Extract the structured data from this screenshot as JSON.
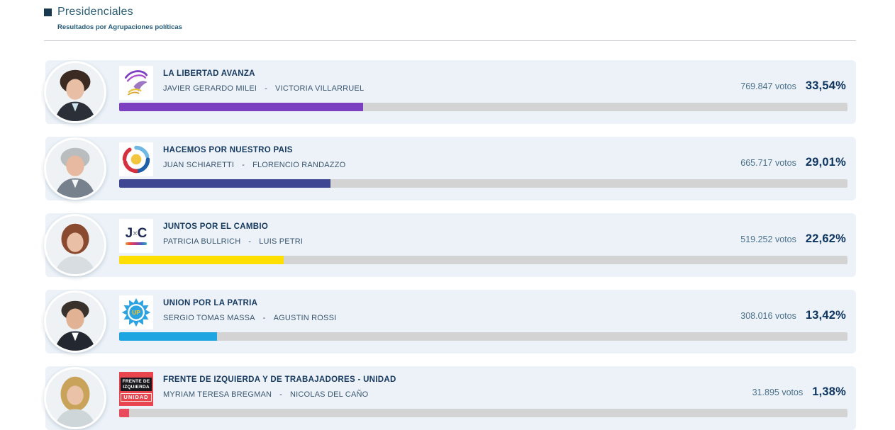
{
  "header": {
    "title": "Presidenciales",
    "subtitle": "Resultados por Agrupaciones políticas"
  },
  "colors": {
    "accent_navy": "#0e3560",
    "card_background": "#ecf2f8",
    "bar_track": "#d3d3d3",
    "header_title": "#2d6077"
  },
  "chart_data": {
    "type": "bar",
    "orientation": "horizontal",
    "title": "Presidenciales",
    "subtitle": "Resultados por Agrupaciones políticas",
    "categories": [
      "LA LIBERTAD AVANZA",
      "HACEMOS POR NUESTRO PAIS",
      "JUNTOS POR EL CAMBIO",
      "UNION POR LA PATRIA",
      "FRENTE DE IZQUIERDA Y DE TRABAJADORES - UNIDAD"
    ],
    "series": [
      {
        "name": "Porcentaje",
        "values": [
          33.54,
          29.01,
          22.62,
          13.42,
          1.38
        ]
      },
      {
        "name": "Votos",
        "values": [
          769847,
          665717,
          519252,
          308016,
          31895
        ]
      }
    ],
    "xlim": [
      0,
      100
    ],
    "bar_colors": [
      "#7b3fc0",
      "#3f4793",
      "#ffdf00",
      "#1ca5e0",
      "#ea4a5e"
    ],
    "legend_position": "none",
    "grid": false
  },
  "rows": [
    {
      "party": "LA LIBERTAD AVANZA",
      "candidate_1": "JAVIER GERARDO MILEI",
      "separator": "-",
      "candidate_2": "VICTORIA VILLARRUEL",
      "votes": "769.847 votos",
      "percent": "33,54%",
      "percent_value": 33.54,
      "bar_color": "#7b3fc0",
      "avatar": {
        "hair": "#3a2a22",
        "face": "#e8bfa4",
        "body": "#2b2f38"
      }
    },
    {
      "party": "HACEMOS POR NUESTRO PAIS",
      "candidate_1": "JUAN SCHIARETTI",
      "separator": "-",
      "candidate_2": "FLORENCIO RANDAZZO",
      "votes": "665.717 votos",
      "percent": "29,01%",
      "percent_value": 29.01,
      "bar_color": "#3f4793",
      "avatar": {
        "hair": "#b9bdbd",
        "face": "#e6b9a0",
        "body": "#77818d"
      }
    },
    {
      "party": "JUNTOS POR EL CAMBIO",
      "candidate_1": "PATRICIA BULLRICH",
      "separator": "-",
      "candidate_2": "LUIS PETRI",
      "votes": "519.252 votos",
      "percent": "22,62%",
      "percent_value": 22.62,
      "bar_color": "#ffdf00",
      "logo_text": {
        "j": "J",
        "x": "×",
        "c": "C"
      },
      "avatar": {
        "hair": "#8a4a30",
        "face": "#e9c0a6",
        "body": "#d8dde2"
      }
    },
    {
      "party": "UNION POR LA PATRIA",
      "candidate_1": "SERGIO TOMAS MASSA",
      "separator": "-",
      "candidate_2": "AGUSTIN ROSSI",
      "votes": "308.016 votos",
      "percent": "13,42%",
      "percent_value": 13.42,
      "bar_color": "#1ca5e0",
      "logo_text": "UP",
      "avatar": {
        "hair": "#39322c",
        "face": "#e2b294",
        "body": "#23272f"
      }
    },
    {
      "party": "FRENTE DE IZQUIERDA Y DE TRABAJADORES - UNIDAD",
      "candidate_1": "MYRIAM TERESA BREGMAN",
      "separator": "-",
      "candidate_2": "NICOLAS DEL CAÑO",
      "votes": "31.895 votos",
      "percent": "1,38%",
      "percent_value": 1.38,
      "bar_color": "#ea4a5e",
      "logo_lines": [
        "FRENTE DE",
        "IZQUIERDA",
        "UNIDAD"
      ],
      "avatar": {
        "hair": "#c9a35a",
        "face": "#e9c2a8",
        "body": "#cfd6da"
      }
    }
  ]
}
